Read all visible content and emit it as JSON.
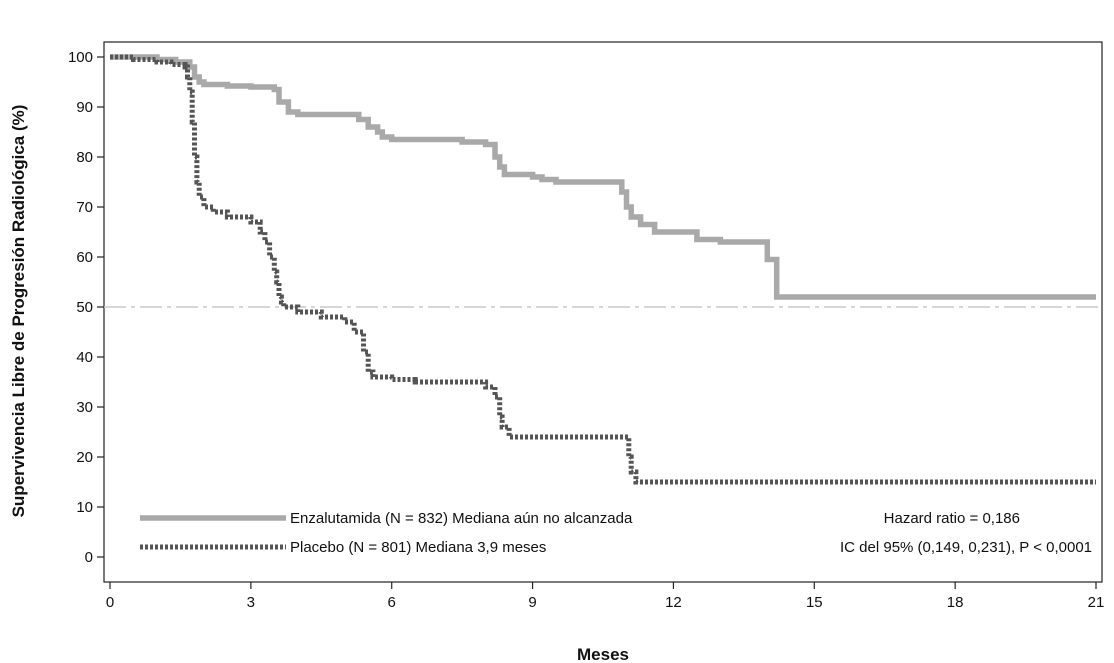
{
  "chart_data": {
    "type": "line",
    "xlabel": "Meses",
    "ylabel": "Supervivencia Libre de Progresión Radiológica (%)",
    "xlim": [
      0,
      21
    ],
    "ylim": [
      -5,
      103
    ],
    "xticks": [
      0,
      3,
      6,
      9,
      12,
      15,
      18,
      21
    ],
    "yticks": [
      0,
      10,
      20,
      30,
      40,
      50,
      60,
      70,
      80,
      90,
      100
    ],
    "grid": false,
    "reference_line": {
      "y": 50,
      "style": "dash-dot",
      "color": "#c8c8c8"
    },
    "series": [
      {
        "name": "Enzalutamida (N = 832) Mediana aún no alcanzada",
        "style": "solid",
        "color": "#a9a9a9",
        "x": [
          0,
          0.5,
          1.0,
          1.4,
          1.7,
          1.8,
          1.9,
          2.0,
          2.5,
          3.0,
          3.5,
          3.6,
          3.8,
          4.0,
          5.0,
          5.3,
          5.5,
          5.7,
          5.8,
          6.0,
          7.0,
          7.5,
          8.0,
          8.2,
          8.3,
          8.4,
          8.6,
          9.0,
          9.2,
          9.5,
          10.0,
          10.5,
          10.8,
          10.9,
          11.0,
          11.1,
          11.3,
          11.6,
          12.0,
          12.5,
          13.0,
          13.5,
          13.9,
          14.0,
          14.15,
          14.2,
          16.0,
          18.0,
          21.0
        ],
        "y": [
          100,
          100,
          99.5,
          99,
          98,
          96,
          95,
          94.5,
          94.2,
          94,
          93.5,
          91,
          89,
          88.5,
          88.5,
          87.5,
          86,
          85,
          84,
          83.5,
          83.5,
          83,
          82.5,
          80,
          78,
          76.5,
          76.5,
          76,
          75.5,
          75,
          75,
          75,
          75,
          73,
          70,
          68,
          66.5,
          65,
          65,
          63.5,
          63,
          63,
          63,
          59.5,
          59.5,
          52,
          52,
          52,
          52
        ]
      },
      {
        "name": "Placebo (N = 801)  Mediana 3,9 meses",
        "style": "dotted",
        "color": "#555555",
        "x": [
          0,
          0.5,
          1.0,
          1.3,
          1.6,
          1.65,
          1.7,
          1.75,
          1.8,
          1.85,
          1.9,
          2.0,
          2.2,
          2.5,
          3.0,
          3.2,
          3.3,
          3.4,
          3.5,
          3.55,
          3.6,
          3.65,
          3.7,
          3.8,
          4.0,
          4.5,
          5.0,
          5.2,
          5.4,
          5.5,
          5.6,
          6.0,
          6.5,
          7.5,
          8.0,
          8.2,
          8.3,
          8.35,
          8.5,
          9.0,
          10.0,
          11.0,
          11.05,
          11.1,
          11.2,
          12.0,
          15.0,
          18.0,
          21.0
        ],
        "y": [
          100,
          99.5,
          99,
          98.5,
          98,
          96,
          93,
          87,
          80,
          75,
          72,
          70,
          69,
          68,
          67,
          65,
          63,
          60,
          57,
          55,
          52,
          51,
          50,
          50,
          49,
          48,
          47,
          45,
          41,
          37,
          36,
          35.5,
          35,
          35,
          34,
          32,
          28,
          26,
          24,
          24,
          24,
          24,
          20,
          17,
          15,
          15,
          15,
          15,
          15
        ]
      }
    ],
    "annotations": [
      {
        "text": "Hazard ratio = 0,186",
        "row": 1
      },
      {
        "text": "IC del 95% (0,149, 0,231), P < 0,0001",
        "row": 2
      }
    ]
  }
}
